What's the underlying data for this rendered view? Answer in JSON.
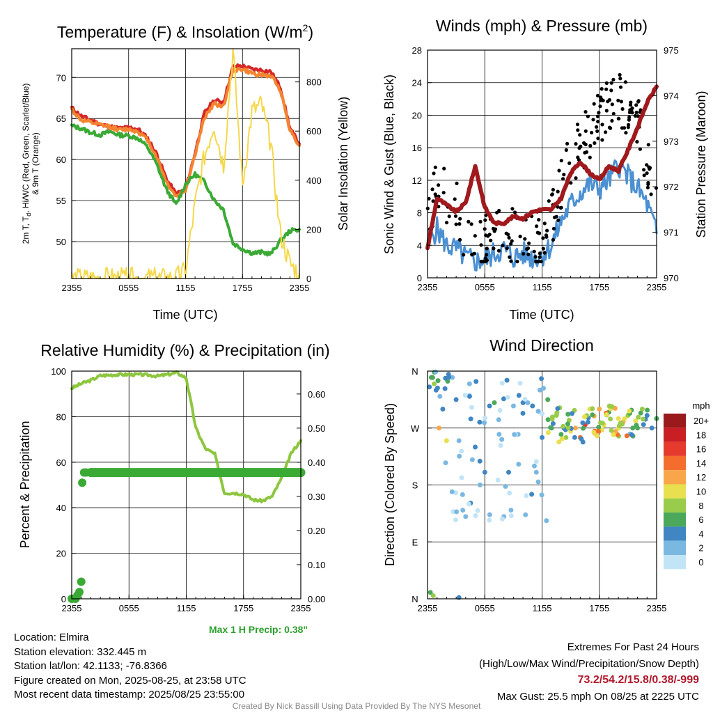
{
  "panels": {
    "temperature": {
      "title_main": "Temperature (F) & Insolation (W/m",
      "title_sup": "2",
      "title_end": ")",
      "ylabel_line1": "2m T, T",
      "ylabel_sub": "d",
      "ylabel_line1_end": ", Hi/WC (Red, Green, Scarlet/Blue)",
      "ylabel_line2": "& 9m T (Orange)",
      "y2label": "Solar Insolation (Yellow)",
      "xlabel": "Time (UTC)"
    },
    "winds": {
      "title": "Winds (mph) & Pressure (mb)",
      "ylabel": "Sonic Wind & Gust (Blue, Black)",
      "y2label": "Station Pressure (Maroon)",
      "xlabel": "Time (UTC)"
    },
    "humidity": {
      "title": "Relative Humidity (%) & Precipitation (in)",
      "ylabel": "Percent & Precipitation",
      "max_precip": "Max 1 H Precip: 0.38\""
    },
    "direction": {
      "title": "Wind Direction",
      "ylabel": "Direction (Colored By Speed)",
      "colorbar_title": "mph",
      "colorbar": [
        {
          "label": "20+",
          "color": "#99191c"
        },
        {
          "label": "18",
          "color": "#c81e24"
        },
        {
          "label": "16",
          "color": "#e63a2e"
        },
        {
          "label": "14",
          "color": "#f46d2c"
        },
        {
          "label": "12",
          "color": "#f9a64a"
        },
        {
          "label": "10",
          "color": "#e8e04f"
        },
        {
          "label": "8",
          "color": "#98cc4a"
        },
        {
          "label": "6",
          "color": "#4ba85a"
        },
        {
          "label": "4",
          "color": "#3f86c2"
        },
        {
          "label": "2",
          "color": "#7ab8e2"
        },
        {
          "label": "0",
          "color": "#c2e4f7"
        }
      ]
    }
  },
  "info": {
    "location": "Location: Elmira",
    "elevation": "Station elevation: 332.445 m",
    "latlon": "Station lat/lon: 42.1133; -76.8366",
    "created": "Figure created on Mon, 2025-08-25, at 23:58 UTC",
    "recent": "Most recent data timestamp: 2025/08/25 23:55:00"
  },
  "extremes": {
    "heading": "Extremes For Past 24 Hours",
    "subheading": "(High/Low/Max Wind/Precipitation/Snow Depth)",
    "values": "73.2/54.2/15.8/0.38/-999",
    "gust": "Max Gust: 25.5 mph On 08/25 at 2225 UTC"
  },
  "credit": "Created By Nick Bassill Using Data Provided By The NYS Mesonet",
  "chart_data": [
    {
      "type": "line",
      "title": "Temperature (F) & Insolation (W/m2)",
      "xlabel": "Time (UTC)",
      "ylabel": "2m T, Td, Hi/WC (Red, Green, Scarlet/Blue) & 9m T (Orange)",
      "y2label": "Solar Insolation (Yellow)",
      "x_ticks": [
        "2355",
        "0555",
        "1155",
        "1755",
        "2355"
      ],
      "x": [
        0,
        1,
        2,
        3,
        4,
        5,
        6,
        7,
        8,
        9,
        10,
        11,
        12,
        13,
        14,
        15,
        16,
        17,
        18,
        19,
        20,
        21,
        22,
        23,
        24
      ],
      "ylim": [
        45.5,
        73.5
      ],
      "y_ticks": [
        50,
        55,
        60,
        65,
        70
      ],
      "y2lim": [
        0,
        935
      ],
      "y2_ticks": [
        0,
        200,
        400,
        600,
        800
      ],
      "series": [
        {
          "name": "2m T",
          "color": "#d62728",
          "values": [
            66.3,
            65.3,
            64.8,
            64.3,
            64.0,
            63.8,
            63.9,
            63.7,
            62.6,
            60.6,
            57.6,
            55.8,
            56.4,
            60.8,
            65.7,
            67.2,
            67.0,
            71.3,
            71.4,
            71.0,
            70.9,
            70.7,
            68.8,
            63.8,
            61.9
          ]
        },
        {
          "name": "9m T",
          "color": "#f48530",
          "values": [
            66.1,
            64.8,
            64.5,
            64.2,
            64.0,
            63.6,
            63.7,
            63.4,
            62.4,
            60.2,
            57.2,
            55.5,
            56.3,
            60.6,
            65.1,
            66.8,
            66.5,
            70.9,
            71.0,
            70.5,
            70.3,
            70.2,
            68.5,
            63.6,
            61.7
          ]
        },
        {
          "name": "Td",
          "color": "#3aaa35",
          "values": [
            64.1,
            63.8,
            63.3,
            63.0,
            63.4,
            63.0,
            62.9,
            62.6,
            61.5,
            59.3,
            56.3,
            54.5,
            57.0,
            58.2,
            57.3,
            55.1,
            53.9,
            49.8,
            49.1,
            48.6,
            48.7,
            48.5,
            50.1,
            51.3,
            51.5
          ]
        },
        {
          "name": "Solar Insolation",
          "color": "#f5d84a",
          "axis": "y2",
          "values": [
            0,
            0,
            0,
            0,
            0,
            0,
            0,
            0,
            0,
            0,
            0,
            0,
            30,
            300,
            500,
            630,
            460,
            930,
            380,
            680,
            710,
            540,
            180,
            60,
            20
          ]
        }
      ]
    },
    {
      "type": "line",
      "title": "Winds (mph) & Pressure (mb)",
      "xlabel": "Time (UTC)",
      "ylabel": "Sonic Wind & Gust (Blue, Black)",
      "y2label": "Station Pressure (Maroon)",
      "x_ticks": [
        "2355",
        "0555",
        "1155",
        "1755",
        "2355"
      ],
      "x": [
        0,
        1,
        2,
        3,
        4,
        5,
        6,
        7,
        8,
        9,
        10,
        11,
        12,
        13,
        14,
        15,
        16,
        17,
        18,
        19,
        20,
        21,
        22,
        23,
        24
      ],
      "ylim": [
        0,
        28
      ],
      "y_ticks": [
        0,
        4,
        8,
        12,
        16,
        20,
        24,
        28
      ],
      "y2lim": [
        970,
        975
      ],
      "y2_ticks": [
        970,
        971,
        972,
        973,
        974,
        975
      ],
      "series": [
        {
          "name": "Sonic Wind",
          "color": "#4a90d2",
          "values": [
            4.5,
            6.0,
            4.0,
            3.5,
            2.5,
            2.0,
            2.2,
            3.0,
            3.5,
            2.5,
            3.0,
            2.5,
            2.8,
            4.0,
            7.0,
            9.0,
            10.5,
            11.5,
            11.0,
            12.0,
            14.0,
            12.5,
            11.0,
            9.0,
            5.5
          ]
        },
        {
          "name": "Gust",
          "color": "#000000",
          "values": [
            7,
            12,
            10,
            9,
            5,
            4,
            4,
            6,
            6,
            5,
            5,
            4,
            4,
            7,
            12,
            14,
            16,
            18,
            20,
            21,
            22,
            21,
            20,
            14,
            10
          ]
        },
        {
          "name": "Station Pressure",
          "color": "#a0191c",
          "axis": "y2",
          "values": [
            970.65,
            971.75,
            971.6,
            971.45,
            971.65,
            972.45,
            971.55,
            971.2,
            971.2,
            971.35,
            971.3,
            971.45,
            971.5,
            971.5,
            971.75,
            972.3,
            972.55,
            972.3,
            972.15,
            972.45,
            972.35,
            972.8,
            973.3,
            973.85,
            974.2
          ]
        }
      ]
    },
    {
      "type": "scatter",
      "title": "Relative Humidity (%) & Precipitation (in)",
      "ylabel": "Percent & Precipitation",
      "x_ticks": [
        "2355",
        "0555",
        "1155",
        "1755",
        "2355"
      ],
      "x": [
        0,
        1,
        2,
        3,
        4,
        5,
        6,
        7,
        8,
        9,
        10,
        11,
        12,
        13,
        14,
        15,
        16,
        17,
        18,
        19,
        20,
        21,
        22,
        23,
        24
      ],
      "ylim": [
        0,
        100
      ],
      "y_ticks": [
        0,
        20,
        40,
        60,
        80,
        100
      ],
      "y2lim": [
        0,
        0.667
      ],
      "y2_ticks": [
        "0.00",
        "0.10",
        "0.20",
        "0.30",
        "0.40",
        "0.50",
        "0.60"
      ],
      "series": [
        {
          "name": "Relative Humidity",
          "color": "#8dc63f",
          "values": [
            92.5,
            94.5,
            96.0,
            98.0,
            98.3,
            98.5,
            98.5,
            98.5,
            98.3,
            97.8,
            98.5,
            99.3,
            97.0,
            75.0,
            66.0,
            63.5,
            46.5,
            46.5,
            46.0,
            43.5,
            43.0,
            45.0,
            53.0,
            64.0,
            69.5
          ]
        },
        {
          "name": "Precipitation",
          "color": "#3aaa35",
          "axis": "y2",
          "x": [
            0,
            0.4,
            0.6,
            0.8,
            1.0,
            1.1,
            1.3,
            1.5,
            2,
            4,
            8,
            12,
            16,
            20,
            24
          ],
          "values": [
            0.0,
            0.0,
            0.01,
            0.02,
            0.05,
            0.34,
            0.37,
            0.37,
            0.37,
            0.38,
            0.38,
            0.38,
            0.38,
            0.38,
            0.38
          ]
        }
      ]
    },
    {
      "type": "scatter",
      "title": "Wind Direction",
      "ylabel": "Direction (Colored By Speed)",
      "x_ticks": [
        "2355",
        "0555",
        "1155",
        "1755",
        "2355"
      ],
      "y_ticks": [
        "N",
        "E",
        "S",
        "W",
        "N"
      ],
      "ylim": [
        0,
        360
      ],
      "x": [
        0.2,
        0.4,
        0.7,
        0.9,
        1.1,
        1.3,
        1.6,
        1.9,
        2.2,
        2.6,
        3.0,
        3.3,
        3.7,
        4.0,
        4.4,
        4.7,
        5.0,
        5.5,
        6.0,
        6.5,
        7.0,
        7.5,
        8.0,
        8.5,
        9.0,
        9.5,
        10.0,
        10.5,
        11.0,
        11.2,
        11.4,
        11.6,
        12.0,
        12.6,
        13.0,
        13.5,
        14.0,
        14.5,
        15.0,
        15.5,
        16.0,
        16.5,
        17.0,
        17.5,
        18.0,
        18.5,
        19.0,
        19.5,
        20.0,
        20.5,
        21.0,
        21.5,
        22.0,
        22.5,
        23.0,
        23.5,
        24.0,
        0.3,
        0.6,
        3.3,
        1.2,
        2.0
      ],
      "values": [
        335,
        350,
        340,
        330,
        345,
        320,
        300,
        215,
        355,
        350,
        315,
        250,
        140,
        130,
        340,
        220,
        240,
        180,
        200,
        305,
        310,
        260,
        130,
        200,
        305,
        260,
        310,
        310,
        305,
        210,
        200,
        185,
        255,
        315,
        270,
        290,
        260,
        255,
        265,
        270,
        255,
        275,
        300,
        265,
        300,
        275,
        295,
        260,
        285,
        280,
        290,
        270,
        270,
        300,
        290,
        270,
        285,
        10,
        5,
        2,
        270,
        250
      ],
      "speeds": [
        4,
        6,
        8,
        4,
        6,
        2,
        4,
        2,
        4,
        2,
        4,
        2,
        2,
        2,
        2,
        2,
        4,
        2,
        4,
        4,
        6,
        2,
        2,
        4,
        2,
        2,
        4,
        2,
        4,
        2,
        2,
        2,
        4,
        6,
        6,
        8,
        6,
        8,
        10,
        12,
        14,
        16,
        10,
        14,
        12,
        10,
        6,
        8,
        10,
        12,
        8,
        6,
        6,
        8,
        4,
        4,
        6,
        6,
        8,
        4,
        12,
        10
      ]
    }
  ]
}
